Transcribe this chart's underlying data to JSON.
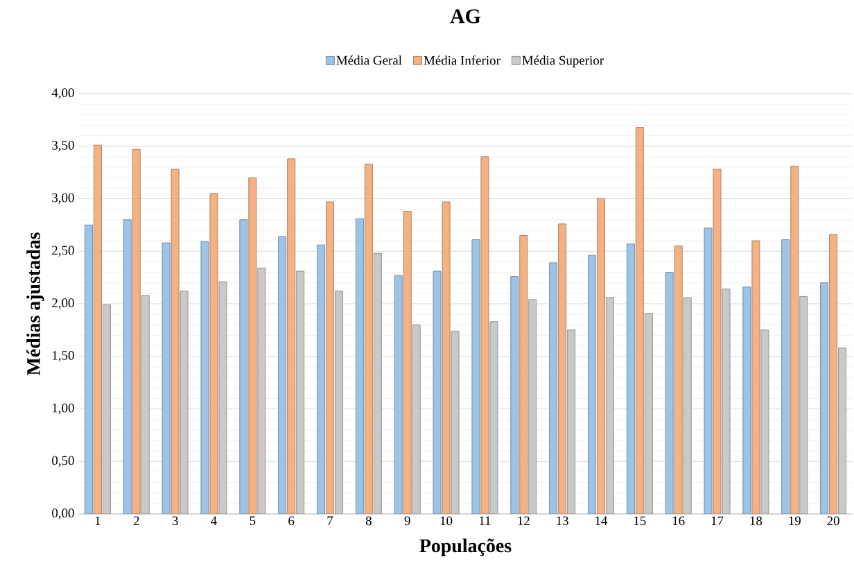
{
  "chart_data": {
    "type": "bar",
    "title": "AG",
    "xlabel": "Populações",
    "ylabel": "Médias ajustadas",
    "categories": [
      "1",
      "2",
      "3",
      "4",
      "5",
      "6",
      "7",
      "8",
      "9",
      "10",
      "11",
      "12",
      "13",
      "14",
      "15",
      "16",
      "17",
      "18",
      "19",
      "20"
    ],
    "series": [
      {
        "name": "Média Geral",
        "color": "#9dc3e6",
        "values": [
          2.75,
          2.8,
          2.58,
          2.59,
          2.8,
          2.64,
          2.56,
          2.81,
          2.27,
          2.31,
          2.61,
          2.26,
          2.39,
          2.46,
          2.57,
          2.3,
          2.72,
          2.16,
          2.61,
          2.2
        ]
      },
      {
        "name": "Média Inferior",
        "color": "#f4b183",
        "values": [
          3.51,
          3.47,
          3.28,
          3.05,
          3.2,
          3.38,
          2.97,
          3.33,
          2.88,
          2.97,
          3.4,
          2.65,
          2.76,
          3.0,
          3.68,
          2.55,
          3.28,
          2.6,
          3.31,
          2.66
        ]
      },
      {
        "name": "Média Superior",
        "color": "#c9c9c9",
        "values": [
          1.99,
          2.08,
          2.12,
          2.21,
          2.34,
          2.31,
          2.12,
          2.48,
          1.8,
          1.74,
          1.83,
          2.04,
          1.75,
          2.06,
          1.91,
          2.06,
          2.14,
          1.75,
          2.07,
          1.58
        ]
      }
    ],
    "ylim": [
      0,
      4
    ],
    "yticks": [
      {
        "value": 0,
        "label": "0,00"
      },
      {
        "value": 0.5,
        "label": "0,50"
      },
      {
        "value": 1,
        "label": "1,00"
      },
      {
        "value": 1.5,
        "label": "1,50"
      },
      {
        "value": 2,
        "label": "2,00"
      },
      {
        "value": 2.5,
        "label": "2,50"
      },
      {
        "value": 3,
        "label": "3,00"
      },
      {
        "value": 3.5,
        "label": "3,50"
      },
      {
        "value": 4,
        "label": "4,00"
      }
    ],
    "grid": "y",
    "legend": "top"
  }
}
